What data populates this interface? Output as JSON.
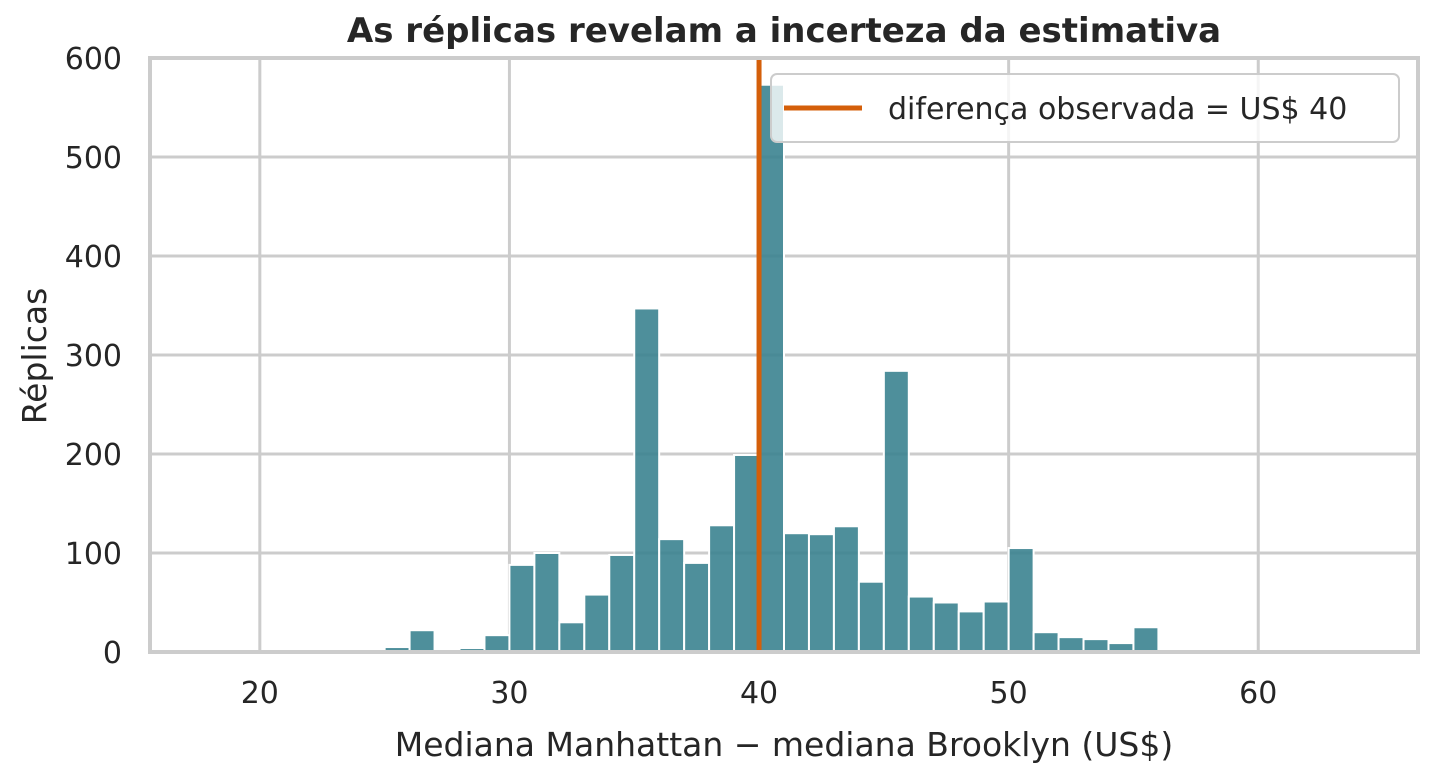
{
  "chart_data": {
    "type": "bar",
    "title": "As réplicas revelam a incerteza da estimativa",
    "xlabel": "Mediana Manhattan − mediana Brooklyn (US$)",
    "ylabel": "Réplicas",
    "xlim": [
      15.6,
      66.4
    ],
    "ylim": [
      0,
      600
    ],
    "x_ticks": [
      20,
      30,
      40,
      50,
      60
    ],
    "y_ticks": [
      0,
      100,
      200,
      300,
      400,
      500,
      600
    ],
    "grid": true,
    "legend": {
      "placement": "top-right",
      "entries": [
        "diferença observada = US$ 40"
      ]
    },
    "bin_width": 1.0,
    "bins": [
      {
        "start": 25,
        "count": 5
      },
      {
        "start": 26,
        "count": 22
      },
      {
        "start": 27,
        "count": 0
      },
      {
        "start": 28,
        "count": 4
      },
      {
        "start": 29,
        "count": 17
      },
      {
        "start": 30,
        "count": 88
      },
      {
        "start": 31,
        "count": 100
      },
      {
        "start": 32,
        "count": 30
      },
      {
        "start": 33,
        "count": 58
      },
      {
        "start": 34,
        "count": 98
      },
      {
        "start": 35,
        "count": 347
      },
      {
        "start": 36,
        "count": 114
      },
      {
        "start": 37,
        "count": 90
      },
      {
        "start": 38,
        "count": 128
      },
      {
        "start": 39,
        "count": 199
      },
      {
        "start": 40,
        "count": 573
      },
      {
        "start": 41,
        "count": 120
      },
      {
        "start": 42,
        "count": 119
      },
      {
        "start": 43,
        "count": 127
      },
      {
        "start": 44,
        "count": 71
      },
      {
        "start": 45,
        "count": 284
      },
      {
        "start": 46,
        "count": 56
      },
      {
        "start": 47,
        "count": 50
      },
      {
        "start": 48,
        "count": 41
      },
      {
        "start": 49,
        "count": 51
      },
      {
        "start": 50,
        "count": 105
      },
      {
        "start": 51,
        "count": 20
      },
      {
        "start": 52,
        "count": 15
      },
      {
        "start": 53,
        "count": 13
      },
      {
        "start": 54,
        "count": 9
      },
      {
        "start": 55,
        "count": 25
      }
    ],
    "observed_value": 40,
    "colors": {
      "bars": "#3b8390",
      "observed_line": "#d45f0a",
      "grid": "#cccccc",
      "frame": "#cccccc"
    }
  }
}
